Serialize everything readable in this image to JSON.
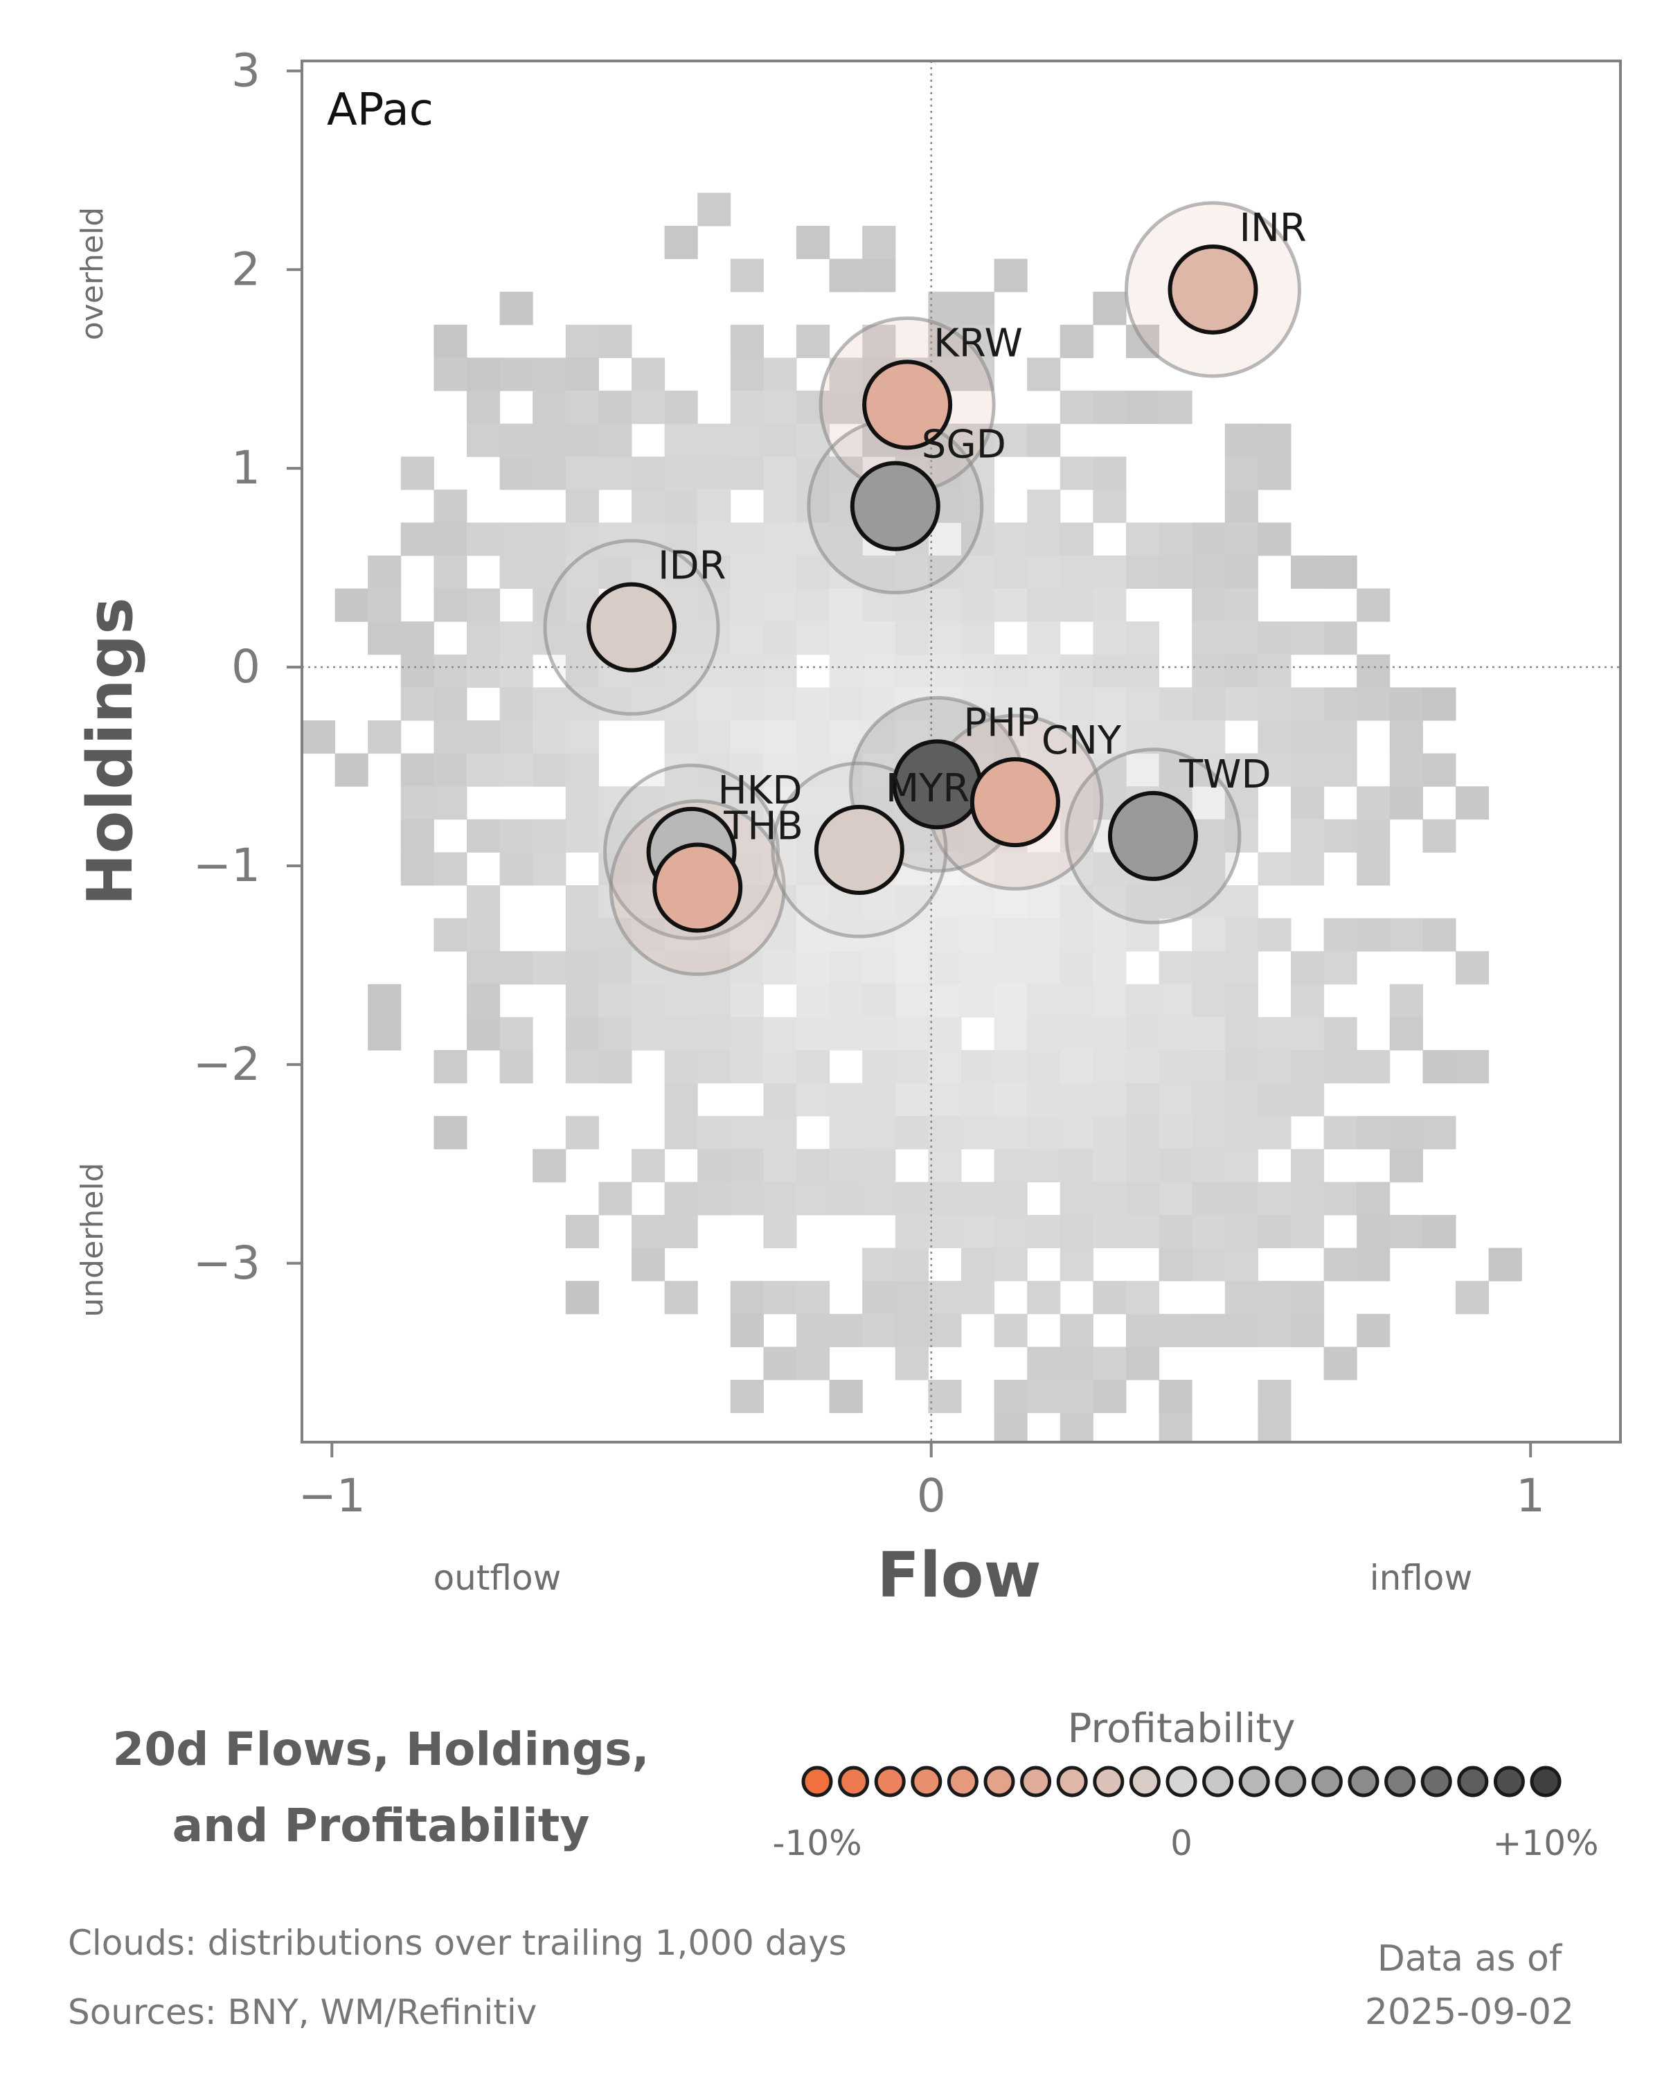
{
  "chart_data": {
    "type": "scatter",
    "panel_label": "APac",
    "xlabel": "Flow",
    "ylabel": "Holdings",
    "xlim": [
      -1.05,
      1.15
    ],
    "ylim": [
      -3.9,
      3.05
    ],
    "xticks": [
      -1,
      0,
      1
    ],
    "xtick_labels": [
      "−1",
      "0",
      "1"
    ],
    "yticks": [
      3,
      2,
      1,
      0,
      -1,
      -2,
      -3
    ],
    "ytick_labels": [
      "3",
      "2",
      "1",
      "0",
      "−1",
      "−2",
      "−3"
    ],
    "x_side_labels": {
      "left": "outflow",
      "right": "inflow"
    },
    "y_side_labels": {
      "top": "overheld",
      "bottom": "underheld"
    },
    "reference_lines": {
      "x": 0,
      "y": 0
    },
    "points": [
      {
        "name": "INR",
        "x": 0.47,
        "y": 1.9,
        "profitability": -3
      },
      {
        "name": "KRW",
        "x": -0.04,
        "y": 1.32,
        "profitability": -4
      },
      {
        "name": "SGD",
        "x": -0.06,
        "y": 0.81,
        "profitability": 4
      },
      {
        "name": "IDR",
        "x": -0.5,
        "y": 0.2,
        "profitability": -1
      },
      {
        "name": "PHP",
        "x": 0.01,
        "y": -0.59,
        "profitability": 8
      },
      {
        "name": "CNY",
        "x": 0.14,
        "y": -0.68,
        "profitability": -4
      },
      {
        "name": "TWD",
        "x": 0.37,
        "y": -0.85,
        "profitability": 4
      },
      {
        "name": "HKD",
        "x": -0.4,
        "y": -0.93,
        "profitability": 2
      },
      {
        "name": "THB",
        "x": -0.39,
        "y": -1.11,
        "profitability": -4
      },
      {
        "name": "MYR",
        "x": -0.12,
        "y": -0.92,
        "profitability": -1
      }
    ],
    "cloud_description_label": "Clouds:  distributions over trailing 1,000 days"
  },
  "title": {
    "line1": "20d Flows, Holdings,",
    "line2": "and Profitability"
  },
  "legend": {
    "title": "Profitability",
    "min_label": "-10%",
    "mid_label": "0",
    "max_label": "+10%",
    "steps": 21,
    "color_low": "#f07040",
    "color_mid": "#d6d6d6",
    "color_high": "#404040"
  },
  "footer": {
    "clouds": "Clouds:  distributions over trailing 1,000 days",
    "sources": "Sources:  BNY, WM/Refinitiv",
    "date_label": "Data as of",
    "date_value": "2025-09-02"
  }
}
